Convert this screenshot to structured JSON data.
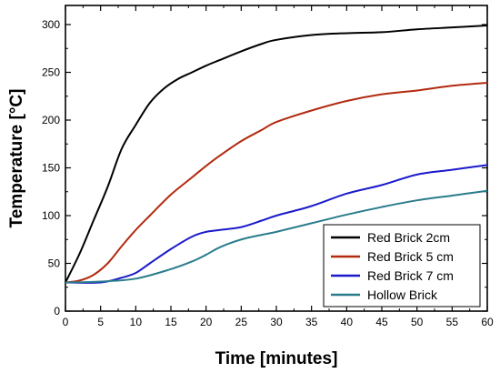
{
  "chart_data": {
    "type": "line",
    "title": "",
    "xlabel": "Time [minutes]",
    "ylabel": "Temperature [°C]",
    "xlim": [
      0,
      60
    ],
    "ylim": [
      0,
      320
    ],
    "xticks": [
      0,
      5,
      10,
      15,
      20,
      25,
      30,
      35,
      40,
      45,
      50,
      55,
      60
    ],
    "yticks": [
      0,
      50,
      100,
      150,
      200,
      250,
      300
    ],
    "grid": false,
    "legend_position": "bottom-right",
    "series": [
      {
        "name": "Red Brick 2cm",
        "color": "#000000",
        "x": [
          0,
          2,
          4,
          6,
          8,
          10,
          12,
          14,
          16,
          18,
          20,
          22,
          25,
          28,
          30,
          35,
          40,
          45,
          50,
          55,
          60
        ],
        "y": [
          30,
          60,
          95,
          130,
          170,
          195,
          218,
          233,
          243,
          250,
          257,
          263,
          272,
          280,
          284,
          289,
          291,
          292,
          295,
          297,
          299
        ]
      },
      {
        "name": "Red Brick 5 cm",
        "color": "#b22a0f",
        "x": [
          0,
          2,
          4,
          6,
          8,
          10,
          12,
          15,
          18,
          20,
          22,
          25,
          28,
          30,
          35,
          40,
          45,
          50,
          55,
          60
        ],
        "y": [
          30,
          32,
          38,
          50,
          68,
          85,
          100,
          122,
          140,
          152,
          163,
          178,
          190,
          198,
          210,
          220,
          227,
          231,
          236,
          239
        ]
      },
      {
        "name": "Red Brick 7 cm",
        "color": "#1a1acc",
        "x": [
          0,
          5,
          8,
          10,
          12,
          15,
          18,
          20,
          22,
          25,
          28,
          30,
          35,
          40,
          45,
          50,
          55,
          60
        ],
        "y": [
          30,
          30,
          35,
          40,
          50,
          65,
          78,
          83,
          85,
          88,
          95,
          100,
          110,
          123,
          132,
          143,
          148,
          153
        ]
      },
      {
        "name": "Hollow Brick",
        "color": "#2a7c8c",
        "x": [
          0,
          5,
          10,
          15,
          18,
          20,
          22,
          25,
          28,
          30,
          35,
          40,
          45,
          50,
          55,
          60
        ],
        "y": [
          30,
          31,
          34,
          44,
          52,
          59,
          67,
          75,
          80,
          83,
          92,
          101,
          109,
          116,
          121,
          126
        ]
      }
    ]
  }
}
